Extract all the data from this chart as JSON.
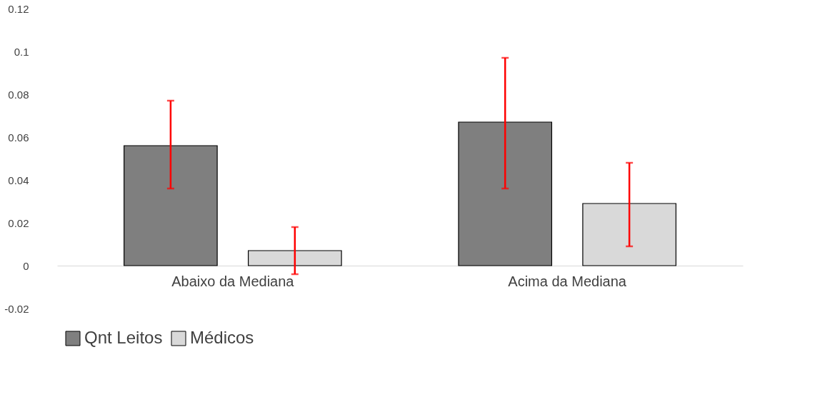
{
  "chart_data": {
    "type": "bar",
    "categories": [
      "Abaixo da Mediana",
      "Acima da Mediana"
    ],
    "series": [
      {
        "name": "Qnt Leitos",
        "color": "#7f7f7f",
        "values": [
          0.056,
          0.067
        ],
        "errors": [
          [
            0.036,
            0.077
          ],
          [
            0.036,
            0.097
          ]
        ]
      },
      {
        "name": "Médicos",
        "color": "#d9d9d9",
        "values": [
          0.007,
          0.029
        ],
        "errors": [
          [
            -0.004,
            0.018
          ],
          [
            0.009,
            0.048
          ]
        ]
      }
    ],
    "ylim": [
      -0.02,
      0.12
    ],
    "yticks": [
      -0.02,
      0,
      0.02,
      0.04,
      0.06,
      0.08,
      0.1,
      0.12
    ],
    "grid": false,
    "legend": "bottom"
  }
}
